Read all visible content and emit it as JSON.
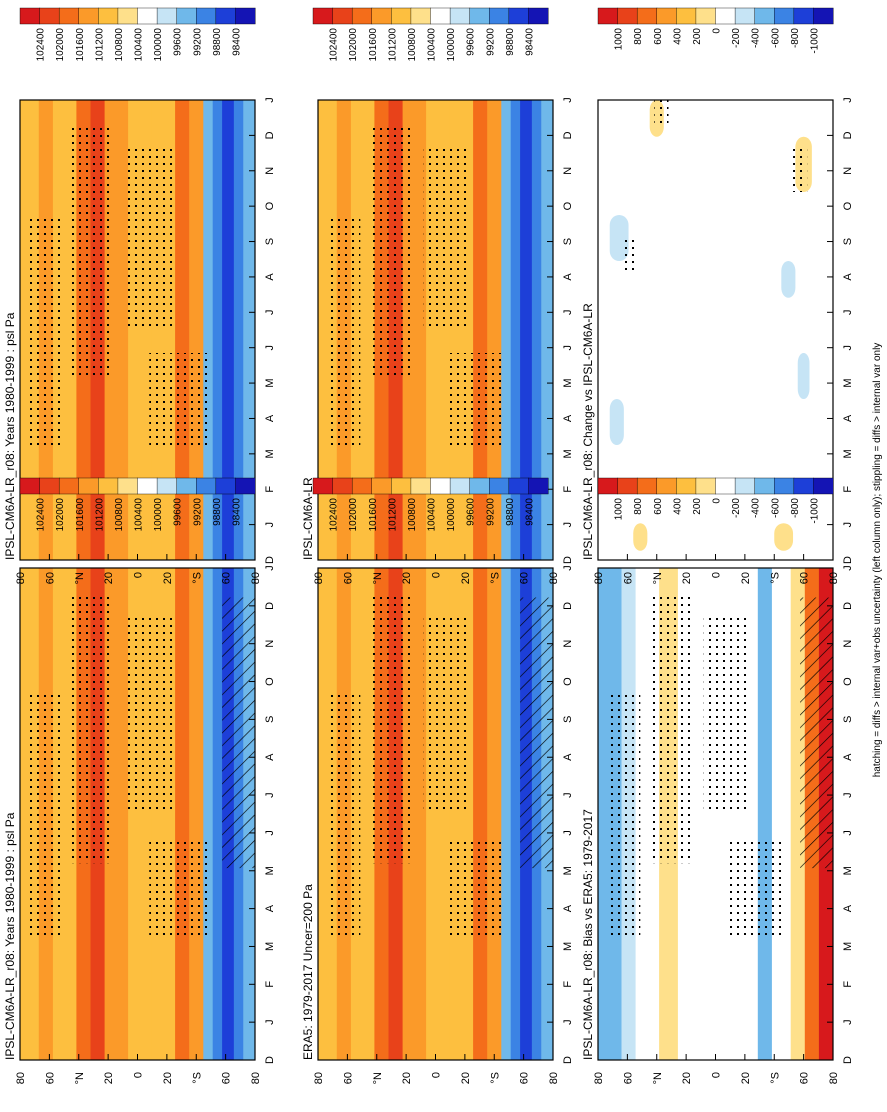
{
  "figure": {
    "footnote": "hatching = diffs > internal var+obs uncertainty (left column only); stippling = diffs > internal var only"
  },
  "axes": {
    "month_ticks": [
      "D",
      "J",
      "F",
      "M",
      "A",
      "M",
      "J",
      "J",
      "A",
      "S",
      "O",
      "N",
      "D",
      "J"
    ],
    "lat_ticks": [
      "80",
      "60",
      "°N",
      "20",
      "0",
      "20",
      "°S",
      "60",
      "80"
    ]
  },
  "colorbars": {
    "absolute": {
      "labels": [
        "102400",
        "102000",
        "101600",
        "101200",
        "100800",
        "100400",
        "100000",
        "99600",
        "99200",
        "98800",
        "98400"
      ],
      "colors": [
        "#d7191c",
        "#e8421a",
        "#f46d1a",
        "#fb9a29",
        "#fdbf3f",
        "#fee08b",
        "#ffffff",
        "#c6e4f5",
        "#6fb8ea",
        "#3b83e4",
        "#1d3fd8",
        "#1414b4"
      ]
    },
    "difference": {
      "labels": [
        "1000",
        "800",
        "600",
        "400",
        "200",
        "0",
        "-200",
        "-400",
        "-600",
        "-800",
        "-1000"
      ],
      "colors": [
        "#d7191c",
        "#e8421a",
        "#f46d1a",
        "#fb9a29",
        "#fdbf3f",
        "#fee08b",
        "#ffffff",
        "#c6e4f5",
        "#6fb8ea",
        "#3b83e4",
        "#1d3fd8",
        "#1414b4"
      ]
    }
  },
  "chart_data": [
    {
      "type": "heatmap",
      "title": "IPSL-CM6A-LR_r08: Years 1980-1999 : psl Pa",
      "x_axis": "month (D J F M A M J J A S O N D J)",
      "y_axis": "latitude (80 N to 80 S)",
      "colorbar": "absolute",
      "hatching": true,
      "stippling": true,
      "profile_lat": [
        80,
        60,
        40,
        20,
        0,
        -20,
        -40,
        -60,
        -80
      ],
      "profile_psl": [
        101500,
        101000,
        101900,
        101300,
        101200,
        101500,
        101200,
        98900,
        99700
      ]
    },
    {
      "type": "heatmap",
      "title": "IPSL-CM6A-LR_r08: Years 1980-1999 : psl Pa",
      "colorbar": "absolute",
      "hatching": false,
      "stippling": true
    },
    {
      "type": "heatmap",
      "title": "ERA5: 1979-2017 Uncer=200 Pa",
      "colorbar": "absolute",
      "hatching": true,
      "stippling": true
    },
    {
      "type": "heatmap",
      "title": "IPSL-CM6A-LR",
      "colorbar": "absolute",
      "hatching": false,
      "stippling": true
    },
    {
      "type": "heatmap",
      "title": "IPSL-CM6A-LR_r08: Bias vs ERA5: 1979-2017",
      "colorbar": "difference",
      "hatching": true,
      "stippling": true,
      "bias_profile_lat": [
        80,
        60,
        40,
        20,
        0,
        -20,
        -40,
        -60,
        -80
      ],
      "bias_profile": [
        -300,
        -300,
        100,
        150,
        0,
        0,
        -400,
        0,
        900
      ]
    },
    {
      "type": "heatmap",
      "title": "IPSL-CM6A-LR_r08: Change vs IPSL-CM6A-LR",
      "colorbar": "difference",
      "hatching": false,
      "stippling": true,
      "change_profile": [
        -200,
        -200,
        100,
        0,
        0,
        0,
        0,
        0,
        150
      ]
    }
  ]
}
